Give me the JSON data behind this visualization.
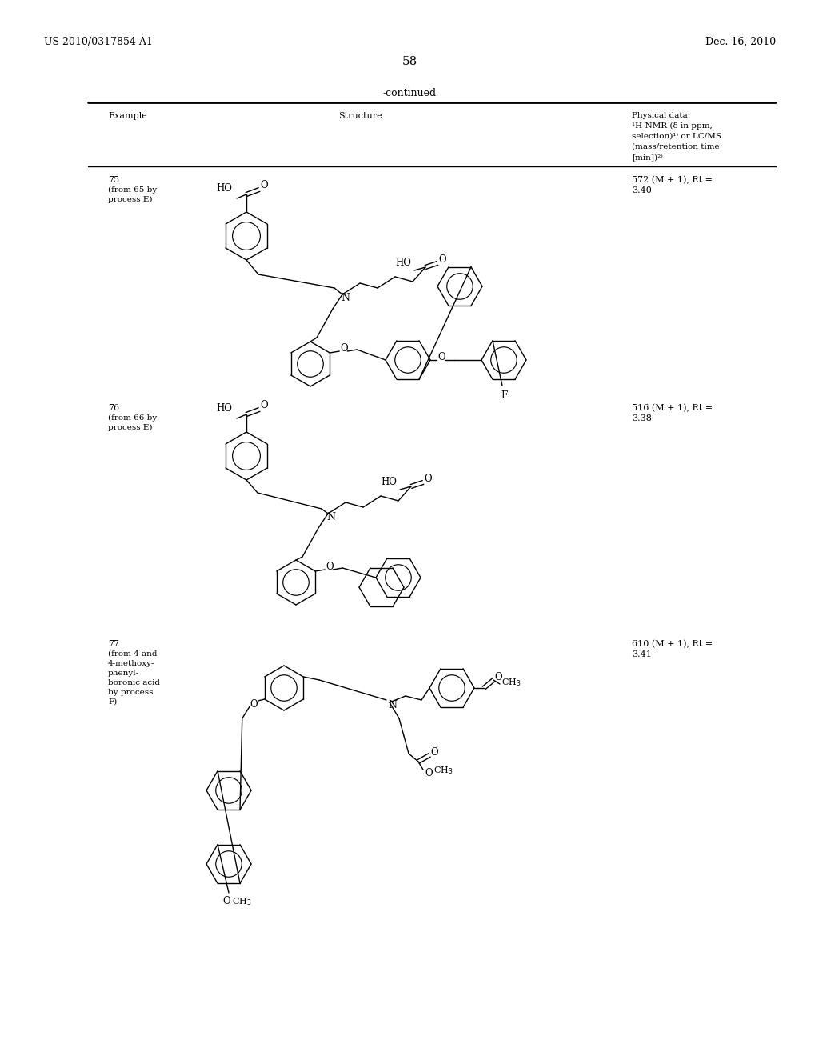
{
  "page_number": "58",
  "patent_number": "US 2010/0317854 A1",
  "date": "Dec. 16, 2010",
  "continued_label": "-continued",
  "header_col1": "Example",
  "header_col2": "Structure",
  "header_col3_lines": [
    "Physical data:",
    "¹H-NMR (δ in ppm,",
    "selection)¹⁾ or LC/MS",
    "(mass/retention time",
    "[min])²⁾"
  ],
  "examples": [
    {
      "num": "75",
      "src": [
        "(from 65 by",
        "process E)"
      ],
      "data": [
        "572 (M + 1), Rt =",
        "3.40"
      ]
    },
    {
      "num": "76",
      "src": [
        "(from 66 by",
        "process E)"
      ],
      "data": [
        "516 (M + 1), Rt =",
        "3.38"
      ]
    },
    {
      "num": "77",
      "src": [
        "(from 4 and",
        "4-methoxy-",
        "phenyl-",
        "boronic acid",
        "by process",
        "F)"
      ],
      "data": [
        "610 (M + 1), Rt =",
        "3.41"
      ]
    }
  ],
  "bg_color": "#ffffff",
  "text_color": "#000000"
}
